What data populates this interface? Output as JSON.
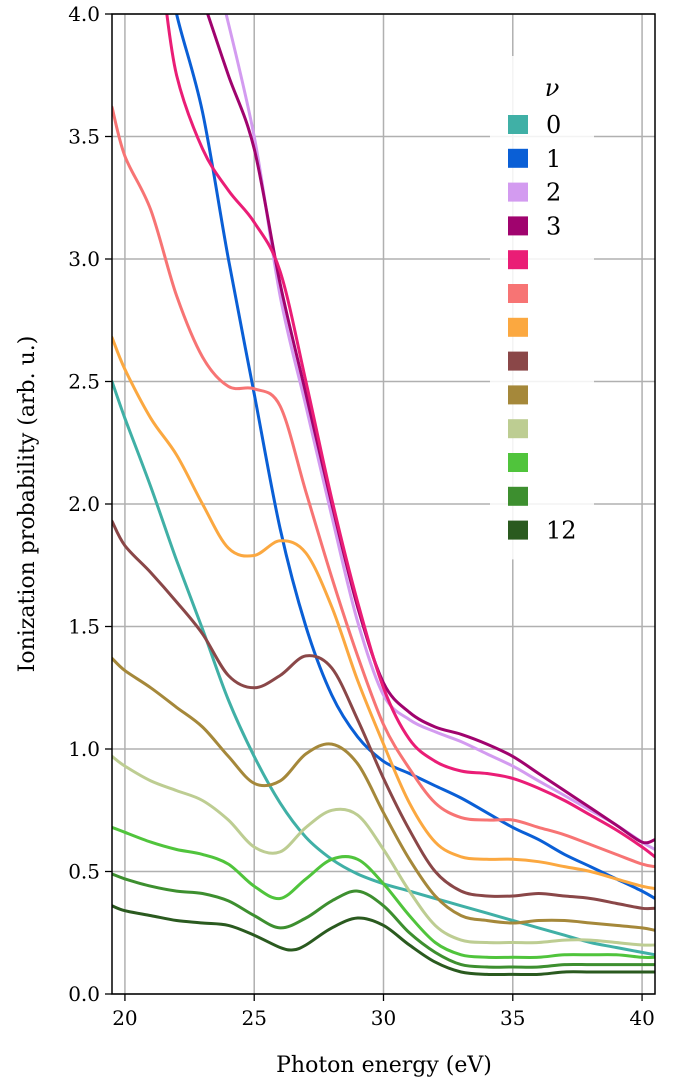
{
  "chart_data": {
    "type": "line",
    "xlabel": "Photon energy (eV)",
    "ylabel": "Ionization probability (arb. u.)",
    "xlim": [
      19.5,
      40.5
    ],
    "ylim": [
      0.0,
      4.0
    ],
    "xticks": [
      20,
      25,
      30,
      35,
      40
    ],
    "yticks": [
      0.0,
      0.5,
      1.0,
      1.5,
      2.0,
      2.5,
      3.0,
      3.5,
      4.0
    ],
    "xtick_labels": [
      "20",
      "25",
      "30",
      "35",
      "40"
    ],
    "ytick_labels": [
      "0.0",
      "0.5",
      "1.0",
      "1.5",
      "2.0",
      "2.5",
      "3.0",
      "3.5",
      "4.0"
    ],
    "grid": true,
    "legend": {
      "title": "ν",
      "placement": "top-right",
      "labels": [
        "0",
        "1",
        "2",
        "3",
        "",
        "",
        "",
        "",
        "",
        "",
        "",
        "",
        "12"
      ]
    },
    "series": [
      {
        "label": "0",
        "color": "#40b0a6",
        "x": [
          19.5,
          20,
          21,
          22,
          23,
          24,
          25,
          26,
          27,
          28,
          29,
          30,
          31,
          32,
          33,
          34,
          35,
          36,
          37,
          38,
          39,
          40,
          40.5
        ],
        "y": [
          2.5,
          2.35,
          2.07,
          1.77,
          1.49,
          1.2,
          0.97,
          0.78,
          0.64,
          0.55,
          0.49,
          0.45,
          0.42,
          0.39,
          0.36,
          0.33,
          0.3,
          0.27,
          0.24,
          0.21,
          0.19,
          0.17,
          0.16
        ]
      },
      {
        "label": "1",
        "color": "#0a5fd6",
        "x": [
          21.5,
          22,
          23,
          24,
          25,
          26,
          27,
          28,
          29,
          30,
          31,
          32,
          33,
          34,
          35,
          36,
          37,
          38,
          39,
          40,
          40.5
        ],
        "y": [
          4.3,
          4.0,
          3.6,
          3.0,
          2.45,
          1.9,
          1.5,
          1.22,
          1.05,
          0.95,
          0.9,
          0.85,
          0.8,
          0.74,
          0.68,
          0.63,
          0.57,
          0.52,
          0.47,
          0.42,
          0.39
        ]
      },
      {
        "label": "2",
        "color": "#d39bf0",
        "x": [
          23.8,
          25,
          26,
          27,
          28,
          29,
          30,
          31,
          32,
          33,
          34,
          35,
          36,
          37,
          38,
          39,
          40,
          40.5
        ],
        "y": [
          4.05,
          3.5,
          2.85,
          2.4,
          1.95,
          1.52,
          1.22,
          1.12,
          1.07,
          1.03,
          0.98,
          0.93,
          0.87,
          0.81,
          0.75,
          0.69,
          0.62,
          0.59
        ]
      },
      {
        "label": "3",
        "color": "#a0036e",
        "x": [
          23.2,
          24,
          25,
          26,
          27,
          28,
          29,
          30,
          31,
          32,
          33,
          34,
          35,
          36,
          37,
          38,
          39,
          40,
          40.5
        ],
        "y": [
          4.0,
          3.75,
          3.45,
          2.9,
          2.45,
          2.0,
          1.58,
          1.27,
          1.15,
          1.09,
          1.06,
          1.02,
          0.97,
          0.9,
          0.83,
          0.76,
          0.69,
          0.62,
          0.63
        ]
      },
      {
        "label": "",
        "color": "#ea1d76",
        "x": [
          21.5,
          22,
          23,
          24,
          25,
          26,
          27,
          28,
          29,
          30,
          31,
          32,
          33,
          34,
          35,
          36,
          37,
          38,
          39,
          40,
          40.5
        ],
        "y": [
          4.1,
          3.75,
          3.45,
          3.28,
          3.15,
          2.95,
          2.5,
          2.02,
          1.6,
          1.25,
          1.04,
          0.95,
          0.91,
          0.9,
          0.88,
          0.84,
          0.79,
          0.73,
          0.67,
          0.6,
          0.56
        ]
      },
      {
        "label": "",
        "color": "#f77474",
        "x": [
          19.5,
          20,
          21,
          22,
          23,
          24,
          25,
          26,
          27,
          28,
          29,
          30,
          31,
          32,
          33,
          34,
          35,
          36,
          37,
          38,
          39,
          40,
          40.5
        ],
        "y": [
          3.62,
          3.42,
          3.2,
          2.85,
          2.6,
          2.48,
          2.47,
          2.4,
          2.05,
          1.7,
          1.38,
          1.1,
          0.92,
          0.78,
          0.72,
          0.71,
          0.71,
          0.68,
          0.65,
          0.61,
          0.57,
          0.53,
          0.52
        ]
      },
      {
        "label": "",
        "color": "#fba840",
        "x": [
          19.5,
          20,
          21,
          22,
          23,
          24,
          25,
          26,
          27,
          28,
          29,
          30,
          31,
          32,
          33,
          34,
          35,
          36,
          37,
          38,
          39,
          40,
          40.5
        ],
        "y": [
          2.68,
          2.55,
          2.35,
          2.2,
          2.0,
          1.82,
          1.79,
          1.85,
          1.8,
          1.58,
          1.28,
          1.02,
          0.78,
          0.62,
          0.56,
          0.55,
          0.55,
          0.54,
          0.52,
          0.5,
          0.47,
          0.44,
          0.43
        ]
      },
      {
        "label": "",
        "color": "#8a4748",
        "x": [
          19.5,
          20,
          21,
          22,
          23,
          24,
          25,
          26,
          27,
          28,
          29,
          30,
          31,
          32,
          33,
          34,
          35,
          36,
          37,
          38,
          39,
          40,
          40.5
        ],
        "y": [
          1.93,
          1.83,
          1.72,
          1.6,
          1.47,
          1.3,
          1.25,
          1.3,
          1.38,
          1.33,
          1.12,
          0.88,
          0.67,
          0.5,
          0.42,
          0.4,
          0.4,
          0.41,
          0.4,
          0.39,
          0.37,
          0.35,
          0.35
        ]
      },
      {
        "label": "",
        "color": "#a5883a",
        "x": [
          19.5,
          20,
          21,
          22,
          23,
          24,
          25,
          26,
          27,
          28,
          29,
          30,
          31,
          32,
          33,
          34,
          35,
          36,
          37,
          38,
          39,
          40,
          40.5
        ],
        "y": [
          1.37,
          1.32,
          1.25,
          1.17,
          1.09,
          0.97,
          0.86,
          0.87,
          0.98,
          1.02,
          0.94,
          0.74,
          0.55,
          0.4,
          0.32,
          0.3,
          0.29,
          0.3,
          0.3,
          0.29,
          0.28,
          0.27,
          0.26
        ]
      },
      {
        "label": "",
        "color": "#bdcd92",
        "x": [
          19.5,
          20,
          21,
          22,
          23,
          24,
          25,
          26,
          27,
          28,
          29,
          30,
          31,
          32,
          33,
          34,
          35,
          36,
          37,
          38,
          39,
          40,
          40.5
        ],
        "y": [
          0.97,
          0.93,
          0.87,
          0.83,
          0.79,
          0.71,
          0.6,
          0.58,
          0.68,
          0.75,
          0.73,
          0.59,
          0.42,
          0.28,
          0.22,
          0.21,
          0.21,
          0.21,
          0.22,
          0.22,
          0.21,
          0.2,
          0.2
        ]
      },
      {
        "label": "",
        "color": "#50c43c",
        "x": [
          19.5,
          20,
          21,
          22,
          23,
          24,
          25,
          26,
          27,
          28,
          29,
          30,
          31,
          32,
          33,
          34,
          35,
          36,
          37,
          38,
          39,
          40,
          40.5
        ],
        "y": [
          0.68,
          0.66,
          0.62,
          0.59,
          0.57,
          0.53,
          0.44,
          0.39,
          0.47,
          0.55,
          0.55,
          0.45,
          0.32,
          0.21,
          0.16,
          0.15,
          0.15,
          0.15,
          0.16,
          0.16,
          0.16,
          0.15,
          0.15
        ]
      },
      {
        "label": "",
        "color": "#3d8f2f",
        "x": [
          19.5,
          20,
          21,
          22,
          23,
          24,
          25,
          26,
          27,
          28,
          29,
          30,
          31,
          32,
          33,
          34,
          35,
          36,
          37,
          38,
          39,
          40,
          40.5
        ],
        "y": [
          0.49,
          0.47,
          0.44,
          0.42,
          0.41,
          0.38,
          0.32,
          0.27,
          0.31,
          0.38,
          0.42,
          0.36,
          0.25,
          0.17,
          0.12,
          0.11,
          0.11,
          0.11,
          0.12,
          0.12,
          0.12,
          0.12,
          0.12
        ]
      },
      {
        "label": "12",
        "color": "#2a5a1f",
        "x": [
          19.5,
          20,
          21,
          22,
          23,
          24,
          25,
          26,
          26.5,
          27,
          28,
          29,
          30,
          31,
          32,
          33,
          34,
          35,
          36,
          37,
          38,
          39,
          40,
          40.5
        ],
        "y": [
          0.36,
          0.34,
          0.32,
          0.3,
          0.29,
          0.28,
          0.24,
          0.19,
          0.18,
          0.2,
          0.27,
          0.31,
          0.28,
          0.2,
          0.13,
          0.09,
          0.08,
          0.08,
          0.08,
          0.09,
          0.09,
          0.09,
          0.09,
          0.09
        ]
      }
    ]
  }
}
